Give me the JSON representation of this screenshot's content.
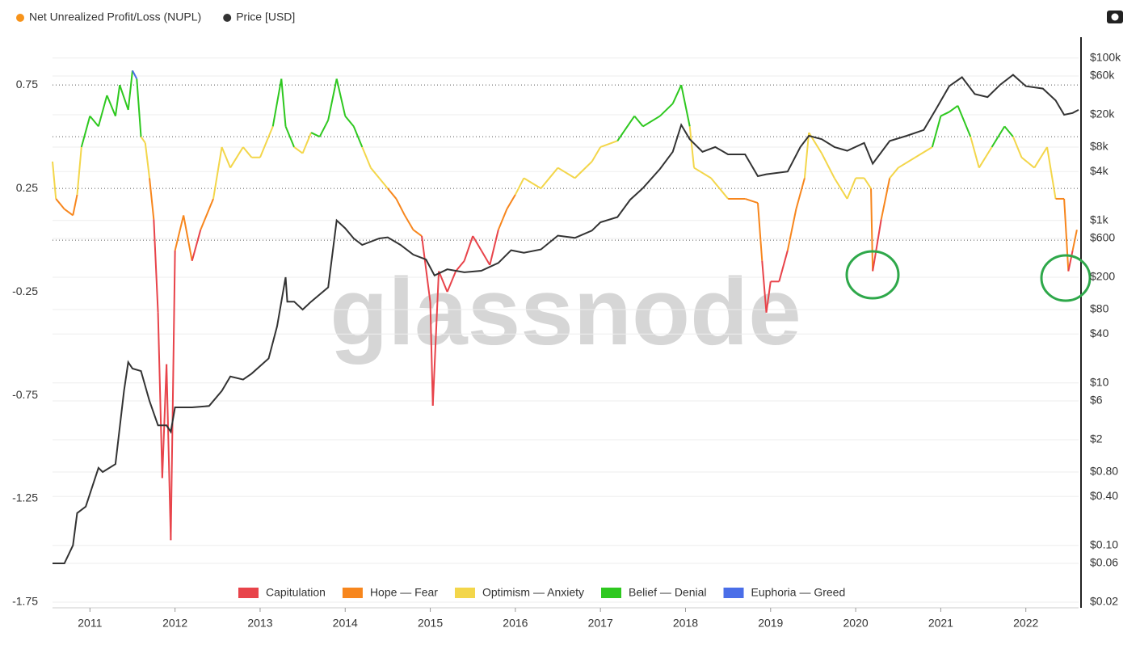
{
  "chart_data": {
    "type": "line",
    "watermark": "glassnode",
    "x": null,
    "xlim": [
      2010.56,
      2022.62
    ],
    "xticks": [
      2011,
      2012,
      2013,
      2014,
      2015,
      2016,
      2017,
      2018,
      2019,
      2020,
      2021,
      2022
    ],
    "ylim": [
      -1.75,
      0.95
    ],
    "yticks": [
      0.75,
      0.25,
      -0.25,
      -0.75,
      -1.25,
      -1.75
    ],
    "y2lim": [
      0.02,
      150000
    ],
    "y2scale": "log",
    "y2ticks": [
      {
        "value": 100000,
        "label": "$100k"
      },
      {
        "value": 60000,
        "label": "$60k"
      },
      {
        "value": 20000,
        "label": "$20k"
      },
      {
        "value": 8000,
        "label": "$8k"
      },
      {
        "value": 4000,
        "label": "$4k"
      },
      {
        "value": 1000,
        "label": "$1k"
      },
      {
        "value": 600,
        "label": "$600"
      },
      {
        "value": 200,
        "label": "$200"
      },
      {
        "value": 80,
        "label": "$80"
      },
      {
        "value": 40,
        "label": "$40"
      },
      {
        "value": 10,
        "label": "$10"
      },
      {
        "value": 6,
        "label": "$6"
      },
      {
        "value": 2,
        "label": "$2"
      },
      {
        "value": 0.8,
        "label": "$0.80"
      },
      {
        "value": 0.4,
        "label": "$0.40"
      },
      {
        "value": 0.1,
        "label": "$0.10"
      },
      {
        "value": 0.06,
        "label": "$0.06"
      },
      {
        "value": 0.02,
        "label": "$0.02"
      }
    ],
    "zone_thresholds": [
      0,
      0.25,
      0.5,
      0.75
    ],
    "zones": [
      {
        "name": "Capitulation",
        "color": "#e8434a"
      },
      {
        "name": "Hope — Fear",
        "color": "#f7861d"
      },
      {
        "name": "Optimism — Anxiety",
        "color": "#f3d64a"
      },
      {
        "name": "Belief — Denial",
        "color": "#2ec81f"
      },
      {
        "name": "Euphoria — Greed",
        "color": "#4a6ee8"
      }
    ],
    "series": [
      {
        "name": "Net Unrealized Profit/Loss (NUPL)",
        "color": "#f7931a",
        "x": [
          2010.56,
          2010.6,
          2010.7,
          2010.8,
          2010.85,
          2010.9,
          2011.0,
          2011.1,
          2011.2,
          2011.3,
          2011.35,
          2011.45,
          2011.5,
          2011.55,
          2011.6,
          2011.65,
          2011.7,
          2011.75,
          2011.8,
          2011.85,
          2011.9,
          2011.95,
          2012.0,
          2012.1,
          2012.2,
          2012.3,
          2012.45,
          2012.55,
          2012.65,
          2012.8,
          2012.9,
          2013.0,
          2013.15,
          2013.25,
          2013.3,
          2013.4,
          2013.5,
          2013.6,
          2013.7,
          2013.8,
          2013.9,
          2014.0,
          2014.1,
          2014.2,
          2014.3,
          2014.4,
          2014.5,
          2014.6,
          2014.7,
          2014.8,
          2014.9,
          2015.0,
          2015.03,
          2015.1,
          2015.2,
          2015.3,
          2015.4,
          2015.5,
          2015.6,
          2015.7,
          2015.8,
          2015.9,
          2016.0,
          2016.1,
          2016.3,
          2016.5,
          2016.7,
          2016.9,
          2017.0,
          2017.2,
          2017.4,
          2017.5,
          2017.7,
          2017.85,
          2017.95,
          2018.05,
          2018.1,
          2018.3,
          2018.5,
          2018.7,
          2018.85,
          2018.9,
          2018.95,
          2019.0,
          2019.1,
          2019.2,
          2019.3,
          2019.4,
          2019.45,
          2019.6,
          2019.75,
          2019.9,
          2020.0,
          2020.1,
          2020.18,
          2020.2,
          2020.3,
          2020.4,
          2020.5,
          2020.7,
          2020.9,
          2021.0,
          2021.1,
          2021.2,
          2021.35,
          2021.45,
          2021.6,
          2021.75,
          2021.85,
          2021.95,
          2022.1,
          2022.25,
          2022.35,
          2022.45,
          2022.5,
          2022.55,
          2022.6
        ],
        "values": [
          0.38,
          0.2,
          0.15,
          0.12,
          0.22,
          0.45,
          0.6,
          0.55,
          0.7,
          0.6,
          0.75,
          0.63,
          0.82,
          0.78,
          0.5,
          0.47,
          0.3,
          0.1,
          -0.35,
          -1.15,
          -0.6,
          -1.45,
          -0.05,
          0.12,
          -0.1,
          0.05,
          0.2,
          0.45,
          0.35,
          0.45,
          0.4,
          0.4,
          0.55,
          0.78,
          0.55,
          0.45,
          0.42,
          0.52,
          0.5,
          0.58,
          0.78,
          0.6,
          0.55,
          0.45,
          0.35,
          0.3,
          0.25,
          0.2,
          0.12,
          0.05,
          0.02,
          -0.3,
          -0.8,
          -0.15,
          -0.25,
          -0.15,
          -0.1,
          0.02,
          -0.05,
          -0.12,
          0.05,
          0.15,
          0.22,
          0.3,
          0.25,
          0.35,
          0.3,
          0.38,
          0.45,
          0.48,
          0.6,
          0.55,
          0.6,
          0.66,
          0.75,
          0.55,
          0.35,
          0.3,
          0.2,
          0.2,
          0.18,
          -0.1,
          -0.35,
          -0.2,
          -0.2,
          -0.05,
          0.15,
          0.3,
          0.52,
          0.42,
          0.3,
          0.2,
          0.3,
          0.3,
          0.25,
          -0.15,
          0.1,
          0.3,
          0.35,
          0.4,
          0.45,
          0.6,
          0.62,
          0.65,
          0.5,
          0.35,
          0.45,
          0.55,
          0.5,
          0.4,
          0.35,
          0.45,
          0.2,
          0.2,
          -0.15,
          -0.05,
          0.05
        ]
      },
      {
        "name": "Price [USD]",
        "color": "#333333",
        "axis": "y2",
        "x": [
          2010.56,
          2010.7,
          2010.8,
          2010.85,
          2010.95,
          2011.1,
          2011.15,
          2011.3,
          2011.4,
          2011.45,
          2011.5,
          2011.6,
          2011.7,
          2011.8,
          2011.9,
          2011.95,
          2012.0,
          2012.2,
          2012.4,
          2012.55,
          2012.65,
          2012.8,
          2012.9,
          2013.1,
          2013.2,
          2013.3,
          2013.32,
          2013.4,
          2013.5,
          2013.6,
          2013.8,
          2013.9,
          2014.0,
          2014.1,
          2014.2,
          2014.4,
          2014.5,
          2014.65,
          2014.8,
          2014.95,
          2015.05,
          2015.2,
          2015.4,
          2015.6,
          2015.8,
          2015.95,
          2016.1,
          2016.3,
          2016.5,
          2016.7,
          2016.9,
          2017.0,
          2017.2,
          2017.35,
          2017.5,
          2017.7,
          2017.85,
          2017.95,
          2018.05,
          2018.2,
          2018.35,
          2018.5,
          2018.7,
          2018.85,
          2018.95,
          2019.2,
          2019.35,
          2019.45,
          2019.6,
          2019.75,
          2019.9,
          2020.1,
          2020.2,
          2020.4,
          2020.6,
          2020.8,
          2020.95,
          2021.1,
          2021.25,
          2021.4,
          2021.55,
          2021.7,
          2021.85,
          2022.0,
          2022.2,
          2022.35,
          2022.45,
          2022.55,
          2022.62
        ],
        "values": [
          0.06,
          0.06,
          0.1,
          0.25,
          0.3,
          0.9,
          0.8,
          1,
          8,
          18,
          15,
          14,
          6,
          3,
          3,
          2.5,
          5,
          5,
          5.2,
          8,
          12,
          11,
          13,
          20,
          50,
          200,
          100,
          100,
          80,
          100,
          150,
          1000,
          800,
          600,
          500,
          600,
          620,
          500,
          380,
          330,
          210,
          250,
          230,
          240,
          300,
          430,
          400,
          440,
          650,
          610,
          750,
          950,
          1100,
          1800,
          2500,
          4300,
          7000,
          15000,
          10000,
          7000,
          8000,
          6500,
          6500,
          3500,
          3700,
          4000,
          8000,
          11000,
          10000,
          8000,
          7200,
          9000,
          5000,
          9500,
          11000,
          13000,
          24000,
          45000,
          58000,
          36000,
          33000,
          47000,
          62000,
          45000,
          42000,
          30000,
          20000,
          21000,
          23000
        ]
      }
    ]
  }
}
